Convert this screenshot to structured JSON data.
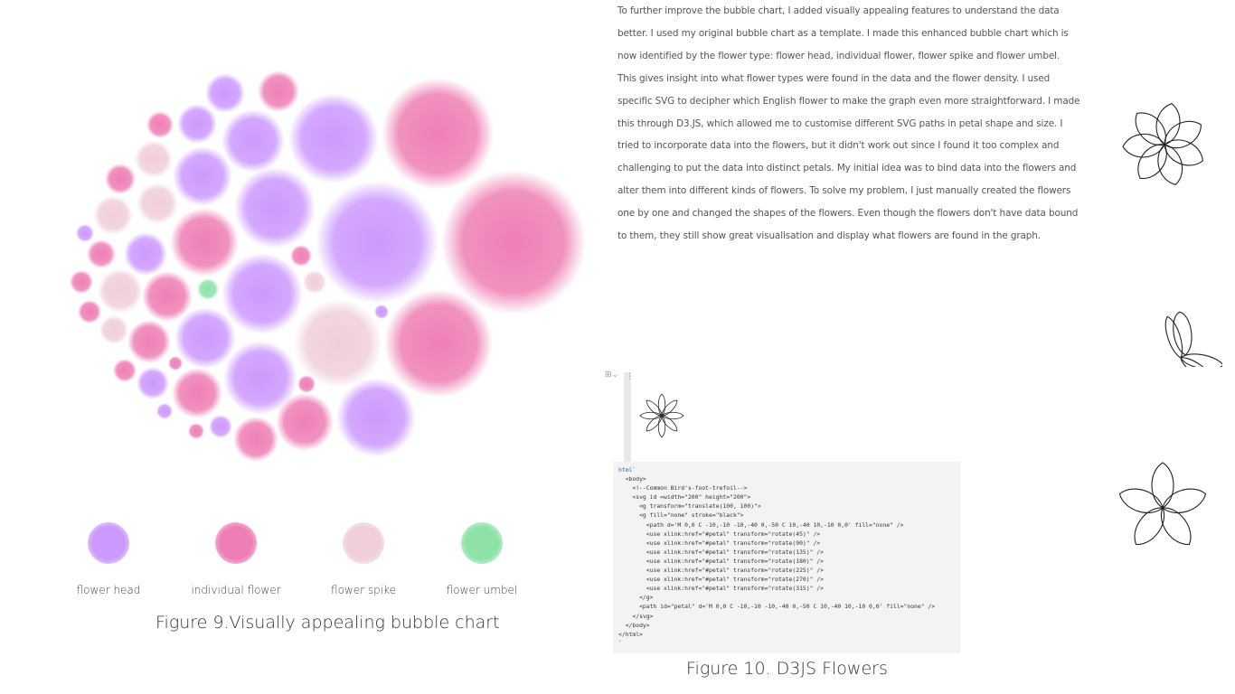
{
  "figure9": {
    "legend": [
      {
        "label": "flower head",
        "color": "#cc99ff"
      },
      {
        "label": "individual flower",
        "color": "#f080b8"
      },
      {
        "label": "flower spike",
        "color": "#f3d5dd"
      },
      {
        "label": "flower umbel",
        "color": "#8ee2a8"
      }
    ],
    "caption": "Figure 9.Visually appealing bubble chart"
  },
  "figure10": {
    "paragraph": "To further improve the bubble chart, I added visually appealing features  to understand the data better. I used my original bubble chart as a template. I made this enhanced bubble chart which is now identified by the flower type: flower head, individual flower, flower spike and flower umbel. This gives insight into what flower types were found in the data and the flower density. I used specific SVG to decipher which English flower to make the graph even more straightforward. I made this through D3.JS, which allowed me to customise different SVG paths in petal shape and size. I tried to incorporate data into the flowers, but it didn't work out since I found it too complex and challenging to put the data into distinct petals. My initial idea was to bind data into the flowers and alter them into different kinds of flowers. To solve my problem, I just manually created the flowers one by one and changed the shapes of the flowers. Even though the flowers don't have data bound to them, they still show great visualisation and display what flowers are found in the graph.",
    "code_lang": "html`",
    "code": "\n  <body>\n    <!--Common Bird's-foot-trefoil-->\n    <svg id =width=\"200\" height=\"200\">\n      <g transform=\"translate(100, 100)\">\n      <g fill=\"none\" stroke=\"black\">\n        <path d='M 0,0 C -10,-10 -10,-40 0,-50 C 10,-40 10,-10 0,0' fill=\"none\" />\n        <use xlink:href=\"#petal\" transform=\"rotate(45)\" />\n        <use xlink:href=\"#petal\" transform=\"rotate(90)\" />\n        <use xlink:href=\"#petal\" transform=\"rotate(135)\" />\n        <use xlink:href=\"#petal\" transform=\"rotate(180)\" />\n        <use xlink:href=\"#petal\" transform=\"rotate(225)\" />\n        <use xlink:href=\"#petal\" transform=\"rotate(270)\" />\n        <use xlink:href=\"#petal\" transform=\"rotate(315)\" />\n      </g>\n      <path id=\"petal\" d='M 0,0 C -10,-10 -10,-40 0,-50 C 10,-40 10,-10 0,0' fill=\"none\" />\n    </svg>\n  </body>\n</html>\n`",
    "caption": "Figure 10.  D3JS Flowers"
  }
}
